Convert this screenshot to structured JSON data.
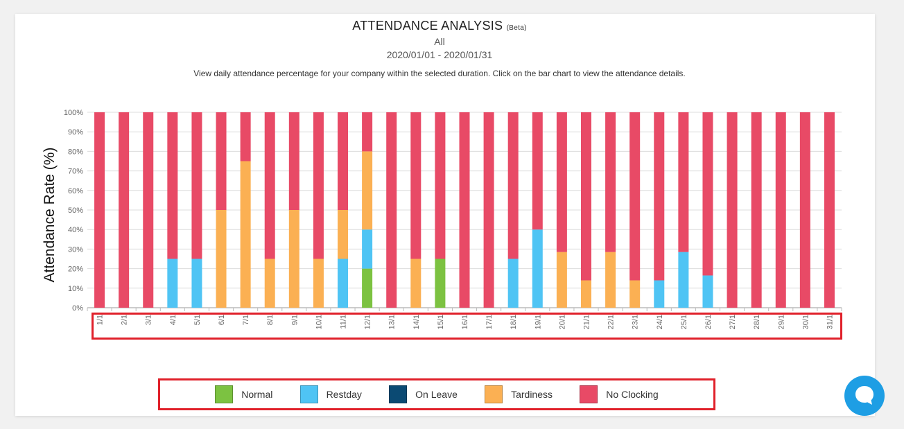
{
  "header": {
    "title": "ATTENDANCE ANALYSIS",
    "title_suffix": "(Beta)",
    "scope": "All",
    "date_range": "2020/01/01 - 2020/01/31",
    "description": "View daily attendance percentage for your company within the selected duration. Click on the bar chart to view the attendance details."
  },
  "colors": {
    "normal": "#7cc241",
    "restday": "#4fc4f4",
    "on_leave": "#0b4a73",
    "tardiness": "#fbb053",
    "no_clocking": "#e84a66"
  },
  "legend": [
    {
      "key": "normal",
      "label": "Normal"
    },
    {
      "key": "restday",
      "label": "Restday"
    },
    {
      "key": "on_leave",
      "label": "On Leave"
    },
    {
      "key": "tardiness",
      "label": "Tardiness"
    },
    {
      "key": "no_clocking",
      "label": "No Clocking"
    }
  ],
  "chat": {
    "icon": "chat-bubble-icon"
  },
  "chart_data": {
    "type": "bar",
    "stacked": true,
    "ylabel": "Attendance Rate (%)",
    "xlabel": "",
    "ylim": [
      0,
      100
    ],
    "yticks": [
      "0%",
      "10%",
      "20%",
      "30%",
      "40%",
      "50%",
      "60%",
      "70%",
      "80%",
      "90%",
      "100%"
    ],
    "grid": true,
    "legend_position": "bottom",
    "categories": [
      "1/1",
      "2/1",
      "3/1",
      "4/1",
      "5/1",
      "6/1",
      "7/1",
      "8/1",
      "9/1",
      "10/1",
      "11/1",
      "12/1",
      "13/1",
      "14/1",
      "15/1",
      "16/1",
      "17/1",
      "18/1",
      "19/1",
      "20/1",
      "21/1",
      "22/1",
      "23/1",
      "24/1",
      "25/1",
      "26/1",
      "27/1",
      "28/1",
      "29/1",
      "30/1",
      "31/1"
    ],
    "series": [
      {
        "name": "Normal",
        "key": "normal",
        "values": [
          0,
          0,
          0,
          0,
          0,
          0,
          0,
          0,
          0,
          0,
          0,
          20,
          0,
          0,
          25,
          0,
          0,
          0,
          0,
          0,
          0,
          0,
          0,
          0,
          0,
          0,
          0,
          0,
          0,
          0,
          0
        ]
      },
      {
        "name": "Restday",
        "key": "restday",
        "values": [
          0,
          0,
          0,
          25,
          25,
          0,
          0,
          0,
          0,
          0,
          25,
          20,
          0,
          0,
          0,
          0,
          0,
          25,
          40,
          0,
          0,
          0,
          0,
          14,
          28.5,
          16.5,
          0,
          0,
          0,
          0,
          0
        ]
      },
      {
        "name": "On Leave",
        "key": "on_leave",
        "values": [
          0,
          0,
          0,
          0,
          0,
          0,
          0,
          0,
          0,
          0,
          0,
          0,
          0,
          0,
          0,
          0,
          0,
          0,
          0,
          0,
          0,
          0,
          0,
          0,
          0,
          0,
          0,
          0,
          0,
          0,
          0
        ]
      },
      {
        "name": "Tardiness",
        "key": "tardiness",
        "values": [
          0,
          0,
          0,
          0,
          0,
          50,
          75,
          25,
          50,
          25,
          25,
          40,
          0,
          25,
          0,
          0,
          0,
          0,
          0,
          28.5,
          14,
          28.5,
          14,
          0,
          0,
          0,
          0,
          0,
          0,
          0,
          0
        ]
      },
      {
        "name": "No Clocking",
        "key": "no_clocking",
        "values": [
          100,
          100,
          100,
          75,
          75,
          50,
          25,
          75,
          50,
          75,
          50,
          20,
          100,
          75,
          75,
          100,
          100,
          75,
          60,
          71.5,
          86,
          71.5,
          86,
          86,
          71.5,
          83.5,
          100,
          100,
          100,
          100,
          100
        ]
      }
    ]
  }
}
